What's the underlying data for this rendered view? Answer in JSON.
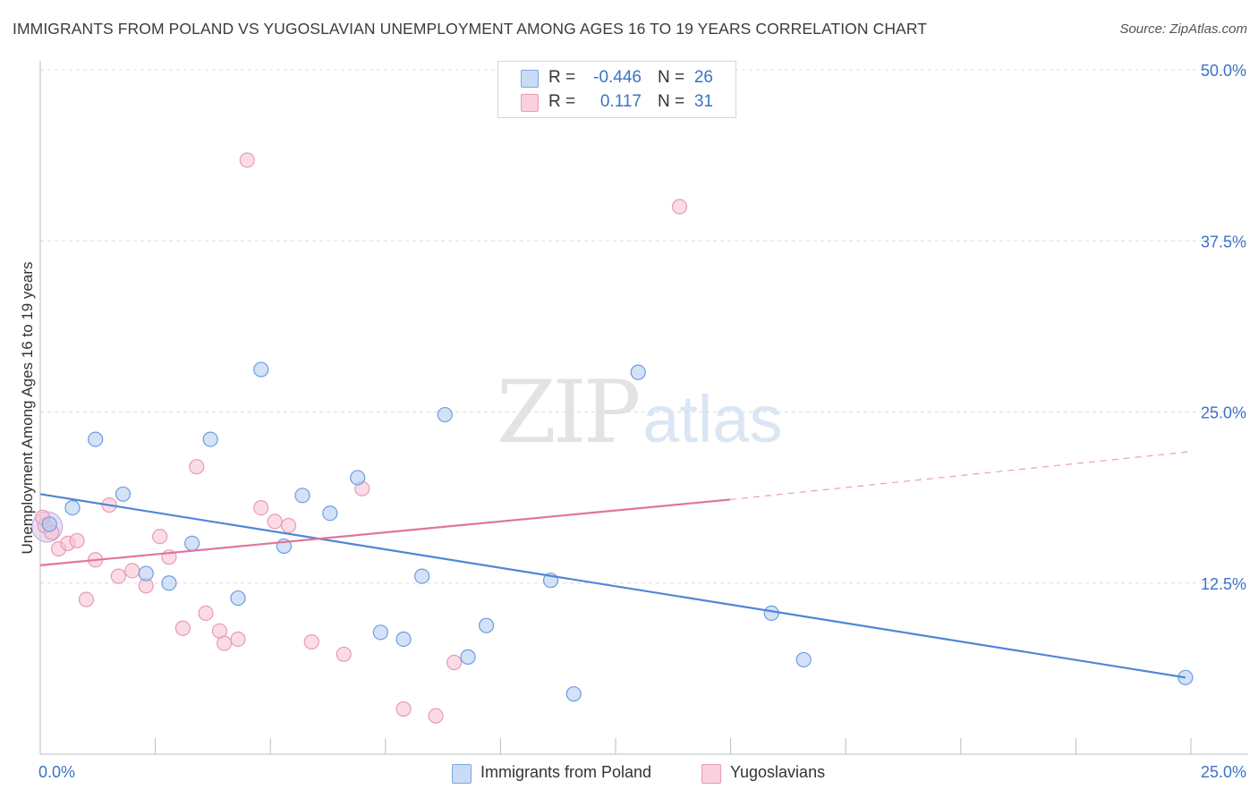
{
  "header": {
    "title": "IMMIGRANTS FROM POLAND VS YUGOSLAVIAN UNEMPLOYMENT AMONG AGES 16 TO 19 YEARS CORRELATION CHART",
    "source": "Source: ZipAtlas.com"
  },
  "watermark": {
    "zip": "ZIP",
    "atlas": "atlas"
  },
  "legend": {
    "r_label": "R =",
    "n_label": "N =",
    "rows": [
      {
        "r": "-0.446",
        "n": "26",
        "color": "#aecbf0"
      },
      {
        "r": "0.117",
        "n": "31",
        "color": "#f7bfd0"
      }
    ]
  },
  "chart_data": {
    "type": "scatter",
    "title": "IMMIGRANTS FROM POLAND VS YUGOSLAVIAN UNEMPLOYMENT AMONG AGES 16 TO 19 YEARS CORRELATION CHART",
    "ylabel": "Unemployment Among Ages 16 to 19 years",
    "xlabel": "",
    "xlim": [
      0,
      25
    ],
    "ylim": [
      0,
      50
    ],
    "x_tick_labels": [
      "0.0%",
      "25.0%"
    ],
    "y_tick_labels": [
      "12.5%",
      "25.0%",
      "37.5%",
      "50.0%"
    ],
    "y_ticks": [
      12.5,
      25.0,
      37.5,
      50.0
    ],
    "grid": true,
    "series": [
      {
        "name": "Immigrants from Poland",
        "color": "#4f86d6",
        "fill": "#aecbf0",
        "points": [
          [
            0.2,
            16.8
          ],
          [
            0.7,
            18.0
          ],
          [
            1.2,
            23.0
          ],
          [
            1.8,
            19.0
          ],
          [
            2.3,
            13.2
          ],
          [
            2.8,
            12.5
          ],
          [
            3.3,
            15.4
          ],
          [
            3.7,
            23.0
          ],
          [
            4.3,
            11.4
          ],
          [
            4.8,
            28.1
          ],
          [
            5.3,
            15.2
          ],
          [
            5.7,
            18.9
          ],
          [
            6.3,
            17.6
          ],
          [
            6.9,
            20.2
          ],
          [
            7.4,
            8.9
          ],
          [
            7.9,
            8.4
          ],
          [
            8.3,
            13.0
          ],
          [
            8.8,
            24.8
          ],
          [
            9.3,
            7.1
          ],
          [
            9.7,
            9.4
          ],
          [
            11.1,
            12.7
          ],
          [
            11.6,
            4.4
          ],
          [
            13.0,
            27.9
          ],
          [
            15.9,
            10.3
          ],
          [
            16.6,
            6.9
          ],
          [
            24.9,
            5.6
          ]
        ],
        "trend": {
          "x": [
            0,
            24.9
          ],
          "y": [
            19.0,
            5.6
          ]
        }
      },
      {
        "name": "Yugoslavians",
        "color": "#e0759b",
        "fill": "#f7bfd0",
        "points": [
          [
            0.1,
            16.7
          ],
          [
            0.4,
            15.0
          ],
          [
            0.6,
            15.4
          ],
          [
            0.8,
            15.6
          ],
          [
            1.0,
            11.3
          ],
          [
            1.2,
            14.2
          ],
          [
            1.5,
            18.2
          ],
          [
            1.7,
            13.0
          ],
          [
            2.0,
            13.4
          ],
          [
            2.3,
            12.3
          ],
          [
            2.6,
            15.9
          ],
          [
            2.8,
            14.4
          ],
          [
            3.1,
            9.2
          ],
          [
            3.4,
            21.0
          ],
          [
            3.6,
            10.3
          ],
          [
            3.9,
            9.0
          ],
          [
            4.0,
            8.1
          ],
          [
            4.3,
            8.4
          ],
          [
            4.5,
            43.4
          ],
          [
            4.8,
            18.0
          ],
          [
            5.1,
            17.0
          ],
          [
            5.4,
            16.7
          ],
          [
            5.9,
            8.2
          ],
          [
            6.6,
            7.3
          ],
          [
            7.0,
            19.4
          ],
          [
            7.9,
            3.3
          ],
          [
            8.6,
            2.8
          ],
          [
            9.0,
            6.7
          ],
          [
            13.9,
            40.0
          ],
          [
            0.05,
            17.3
          ],
          [
            0.25,
            16.2
          ]
        ],
        "trend_solid": {
          "x": [
            0,
            15.0
          ],
          "y": [
            13.8,
            18.6
          ]
        },
        "trend_dashed": {
          "x": [
            15.0,
            25.0
          ],
          "y": [
            18.6,
            22.1
          ]
        }
      }
    ]
  }
}
